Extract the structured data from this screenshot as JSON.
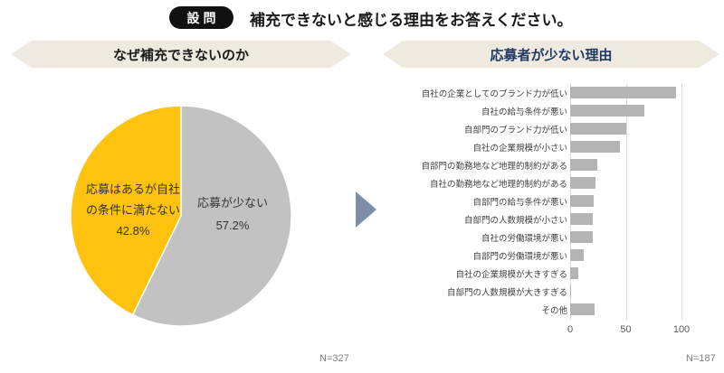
{
  "header": {
    "badge": "設問",
    "title": "補充できないと感じる理由をお答えください。"
  },
  "left_panel": {
    "title": "なぜ補充できないのか",
    "sample_label": "N=327"
  },
  "right_panel": {
    "title": "応募者が少ない理由",
    "sample_label": "N=187"
  },
  "colors": {
    "badge_bg": "#111111",
    "ribbon_bg": "#efeae0",
    "right_title_navy": "#1f3864",
    "pie_yellow": "#ffc20e",
    "pie_gray": "#c2c2c2",
    "bar_gray": "#b4b4b4",
    "gridline": "#d9d9d9",
    "arrow_blue": "#7d8ea9",
    "n_label_gray": "#7f7f7f"
  },
  "chart_data": [
    {
      "type": "pie",
      "title": "なぜ補充できないのか",
      "start_angle_deg": 0,
      "direction": "clockwise",
      "slices": [
        {
          "label": "応募が少ない",
          "value": 57.2,
          "display_lines": [
            "応募が少ない",
            "57.2%"
          ],
          "color": "#c2c2c2"
        },
        {
          "label": "応募はあるが自社の条件に満たない",
          "value": 42.8,
          "display_lines": [
            "応募はあるが自社",
            "の条件に満たない",
            "42.8%"
          ],
          "color": "#ffc20e"
        }
      ],
      "n": "N=327"
    },
    {
      "type": "bar",
      "orientation": "horizontal",
      "title": "応募者が少ない理由",
      "categories": [
        "自社の企業としてのブランド力が低い",
        "自社の給与条件が悪い",
        "自部門のブランド力が低い",
        "自社の企業規模が小さい",
        "自部門の勤務地など地理的制約がある",
        "自社の勤務地など地理的制約がある",
        "自部門の給与条件が悪い",
        "自部門の人数規模が小さい",
        "自社の労働環境が悪い",
        "自部門の労働環境が悪い",
        "自社の企業規模が大きすぎる",
        "自部門の人数規模が大きすぎる",
        "その他"
      ],
      "values": [
        95,
        67,
        50,
        45,
        24,
        23,
        21,
        20,
        20,
        12,
        7,
        1,
        22
      ],
      "xlabel": "",
      "ylabel": "",
      "xlim": [
        0,
        100
      ],
      "xticks": [
        0,
        50,
        100
      ],
      "grid": true,
      "bar_color": "#b4b4b4",
      "n": "N=187"
    }
  ]
}
